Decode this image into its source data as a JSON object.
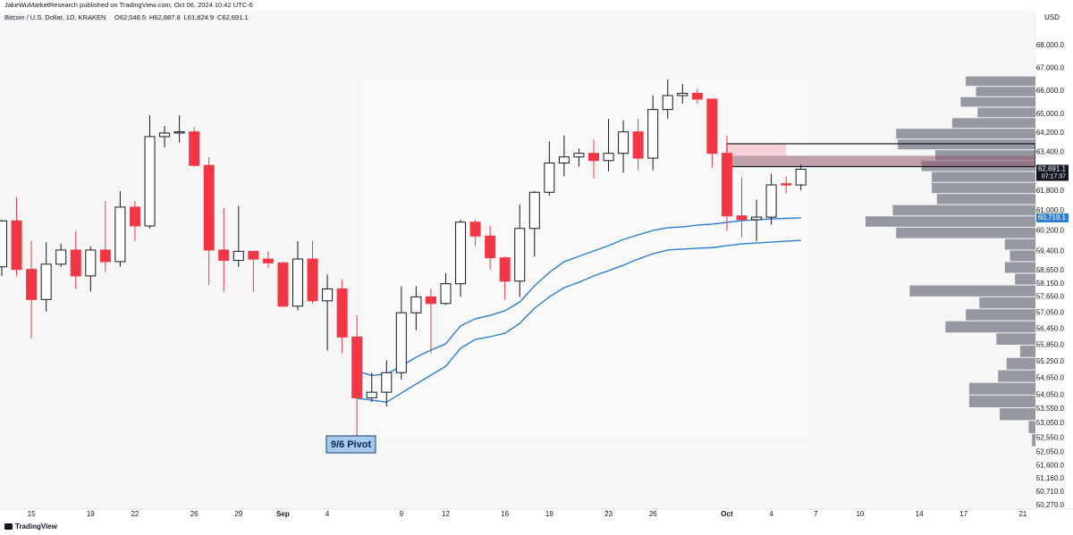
{
  "header": {
    "publisher": "JakeWuMarketResearch published on TradingView.com, Oct 06, 2024 10:42 UTC-6",
    "symbol": "Bitcoin / U.S. Dollar, 1D, KRAKEN",
    "ohlc": [
      {
        "value": 62048.5,
        "label": "O62,048.5"
      },
      {
        "value": 62887.8,
        "label": "H62,887.8"
      },
      {
        "value": 61824.9,
        "label": "L61,824.9"
      },
      {
        "value": 62691.1,
        "label": "C62,691.1"
      }
    ]
  },
  "footer": {
    "logo": "TradingView"
  },
  "chart_data": {
    "type": "candlestick",
    "categories": [
      null,
      null,
      "15",
      null,
      null,
      null,
      "19",
      null,
      null,
      "22",
      null,
      null,
      null,
      "26",
      null,
      null,
      "29",
      null,
      null,
      "Sep",
      null,
      null,
      "4",
      null,
      null,
      null,
      null,
      "9",
      null,
      null,
      "12",
      null,
      null,
      null,
      "16",
      null,
      null,
      "19",
      null,
      null,
      null,
      "23",
      null,
      null,
      "26",
      null,
      null,
      null,
      null,
      "Oct",
      null,
      null,
      "4",
      null,
      null,
      "7",
      null,
      null,
      "10",
      null,
      null,
      null,
      "14",
      null,
      null,
      "17",
      null,
      null,
      null,
      "21"
    ],
    "open": [
      58800,
      60600,
      58700,
      57550,
      58900,
      59450,
      58450,
      59450,
      59000,
      61150,
      60400,
      64050,
      64200,
      64250,
      62850,
      59450,
      59050,
      59400,
      59100,
      58950,
      57300,
      59100,
      57500,
      57950,
      56150,
      53950,
      54150,
      54850,
      57050,
      57650,
      57400,
      58150,
      60550,
      60000,
      59150,
      58250,
      60300,
      61750,
      62950,
      63200,
      63350,
      63050,
      63350,
      64250,
      63150,
      65200,
      65800,
      65900,
      65650,
      63350,
      60800,
      60650,
      60750,
      62100,
      62048.5,
      null,
      null,
      null,
      null,
      null,
      null,
      null,
      null,
      null,
      null,
      null,
      null,
      null,
      null,
      null
    ],
    "high": [
      60650,
      61550,
      59800,
      59750,
      59700,
      60200,
      59600,
      61400,
      61800,
      61400,
      64950,
      64500,
      64950,
      64450,
      63200,
      61100,
      61200,
      59400,
      59400,
      59000,
      59800,
      59800,
      58500,
      58300,
      56950,
      54850,
      55300,
      58050,
      58050,
      57950,
      58550,
      60650,
      60650,
      60400,
      59200,
      61250,
      61800,
      63850,
      64100,
      63550,
      63950,
      64800,
      64750,
      64800,
      65800,
      66500,
      66300,
      66100,
      65650,
      64100,
      62350,
      61450,
      62500,
      62400,
      62887.8,
      null,
      null,
      null,
      null,
      null,
      null,
      null,
      null,
      null,
      null,
      null,
      null,
      null,
      null,
      null
    ],
    "low": [
      58450,
      58450,
      56100,
      57100,
      58800,
      57950,
      57850,
      58600,
      58800,
      59800,
      60300,
      63600,
      63800,
      62800,
      58100,
      57850,
      58800,
      57850,
      58750,
      57250,
      57150,
      57400,
      55650,
      55550,
      52550,
      53800,
      53650,
      54600,
      56400,
      55550,
      57350,
      57650,
      59600,
      58700,
      57550,
      57650,
      59200,
      61600,
      62400,
      62800,
      62300,
      62600,
      62550,
      62650,
      62650,
      64800,
      65450,
      65450,
      62750,
      60200,
      59950,
      59800,
      60450,
      61700,
      61824.9,
      null,
      null,
      null,
      null,
      null,
      null,
      null,
      null,
      null,
      null,
      null,
      null,
      null,
      null,
      null
    ],
    "close": [
      60600,
      58700,
      57550,
      58900,
      59450,
      58450,
      59450,
      59000,
      61150,
      60400,
      64050,
      64200,
      64250,
      62850,
      59450,
      59050,
      59400,
      59100,
      58950,
      57300,
      59100,
      57500,
      57950,
      56150,
      53950,
      54150,
      54850,
      57050,
      57650,
      57400,
      58150,
      60550,
      60000,
      59150,
      58250,
      60300,
      61750,
      62950,
      63200,
      63350,
      63050,
      63350,
      64250,
      63150,
      65200,
      65800,
      65900,
      65650,
      63350,
      60800,
      60650,
      60750,
      62050,
      62048.5,
      62691.1,
      null,
      null,
      null,
      null,
      null,
      null,
      null,
      null,
      null,
      null,
      null,
      null,
      null,
      null,
      null
    ],
    "colors": {
      "up": "#ffffff",
      "down": "#f23645",
      "outline": "#131722"
    },
    "lines": [
      {
        "color": "#2a7fd4",
        "values": [
          null,
          null,
          null,
          null,
          null,
          null,
          null,
          null,
          null,
          null,
          null,
          null,
          null,
          null,
          null,
          null,
          null,
          null,
          null,
          null,
          null,
          null,
          null,
          null,
          54900,
          54750,
          54800,
          55080,
          55410,
          55670,
          55900,
          56560,
          56825,
          56955,
          57125,
          57455,
          58070,
          58580,
          59000,
          59205,
          59415,
          59620,
          59865,
          60045,
          60220,
          60330,
          60360,
          60430,
          60470,
          60540,
          60610,
          60645,
          60680,
          60700,
          60719.1,
          null,
          null,
          null,
          null,
          null,
          null,
          null,
          null,
          null,
          null,
          null,
          null,
          null,
          null,
          null
        ]
      },
      {
        "color": "#2a7fd4",
        "values": [
          null,
          null,
          null,
          null,
          null,
          null,
          null,
          null,
          null,
          null,
          null,
          null,
          null,
          null,
          null,
          null,
          null,
          null,
          null,
          null,
          null,
          null,
          null,
          null,
          53935,
          53865,
          53800,
          54120,
          54440,
          54760,
          55080,
          55735,
          56060,
          56160,
          56290,
          56655,
          57220,
          57650,
          58000,
          58205,
          58450,
          58650,
          58860,
          59100,
          59305,
          59450,
          59485,
          59520,
          59545,
          59620,
          59690,
          59725,
          59760,
          59795,
          59830,
          null,
          null,
          null,
          null,
          null,
          null,
          null,
          null,
          null,
          null,
          null,
          null,
          null,
          null,
          null
        ]
      }
    ],
    "ylim": [
      50000,
      69450
    ],
    "log_scale": true,
    "grid": false,
    "y_unit": "USD",
    "yticks": [
      {
        "value": 68000,
        "label": "68,000.0"
      },
      {
        "value": 67000,
        "label": "67,000.0"
      },
      {
        "value": 66000,
        "label": "66,000.0"
      },
      {
        "value": 65000,
        "label": "65,000.0"
      },
      {
        "value": 64200,
        "label": "64,200.0"
      },
      {
        "value": 63400,
        "label": "63,400.0"
      },
      {
        "value": 61800,
        "label": "61,800.0"
      },
      {
        "value": 61000,
        "label": "61,000.0"
      },
      {
        "value": 60200,
        "label": "60,200.0"
      },
      {
        "value": 59400,
        "label": "59,400.0"
      },
      {
        "value": 58650,
        "label": "58,650.0"
      },
      {
        "value": 58150,
        "label": "58,150.0"
      },
      {
        "value": 57650,
        "label": "57,650.0"
      },
      {
        "value": 57050,
        "label": "57,050.0"
      },
      {
        "value": 56450,
        "label": "56,450.0"
      },
      {
        "value": 55850,
        "label": "55,850.0"
      },
      {
        "value": 55250,
        "label": "55,250.0"
      },
      {
        "value": 54650,
        "label": "54,650.0"
      },
      {
        "value": 54050,
        "label": "54,050.0"
      },
      {
        "value": 53550,
        "label": "53,550.0"
      },
      {
        "value": 53050,
        "label": "53,050.0"
      },
      {
        "value": 52550,
        "label": "52,550.0"
      },
      {
        "value": 52050,
        "label": "52,050.0"
      },
      {
        "value": 51600,
        "label": "51,600.0"
      },
      {
        "value": 51160,
        "label": "51,160.0"
      },
      {
        "value": 50710,
        "label": "50,710.0"
      },
      {
        "value": 50270,
        "label": "50,270.0"
      }
    ],
    "last_price": {
      "value": 62691.1,
      "label": "62,691.1",
      "countdown": "07:17:37"
    },
    "line_price": {
      "value": 60719.1,
      "label": "60,719.1"
    },
    "volume_profile": {
      "color": "#9598a1",
      "bins": [
        52250,
        52700,
        53150,
        53600,
        54050,
        54500,
        54950,
        55400,
        55850,
        56300,
        56750,
        57200,
        57650,
        58100,
        58550,
        59000,
        59450,
        59900,
        60350,
        60800,
        61250,
        61700,
        62150,
        62600,
        63050,
        63500,
        63950,
        64400,
        64850,
        65300,
        65750,
        66200,
        66650
      ],
      "values": [
        2,
        4,
        21,
        39,
        39,
        22,
        17,
        9,
        23,
        53,
        41,
        33,
        74,
        12,
        18,
        15,
        18,
        82,
        100,
        84,
        58,
        61,
        61,
        67,
        59,
        81,
        82,
        49,
        34,
        44,
        35,
        41
      ]
    },
    "zone": {
      "low": 62800,
      "mid": 63250,
      "high": 63750
    },
    "annotation": "9/6 Pivot"
  }
}
